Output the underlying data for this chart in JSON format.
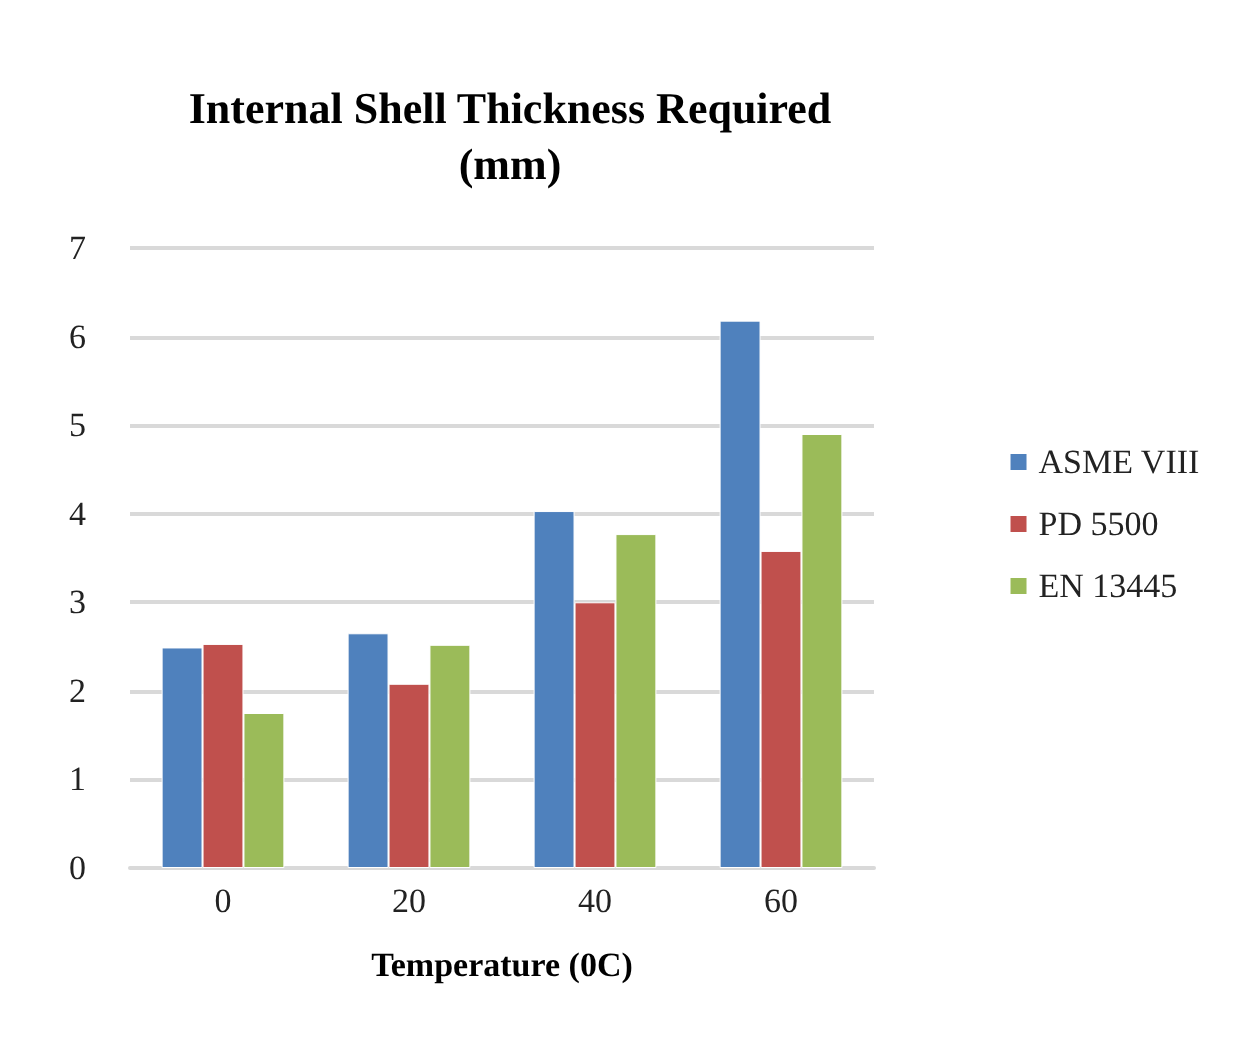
{
  "chart_data": {
    "type": "bar",
    "title": "Internal Shell Thickness Required\n(mm)",
    "xlabel": "Temperature (0C)",
    "categories": [
      "0",
      "20",
      "40",
      "60"
    ],
    "series": [
      {
        "name": "ASME VIII",
        "color": "#4f81bd",
        "values": [
          2.49,
          2.65,
          4.03,
          6.18
        ]
      },
      {
        "name": "PD 5500",
        "color": "#c0504d",
        "values": [
          2.53,
          2.08,
          3.0,
          3.58
        ]
      },
      {
        "name": "EN 13445",
        "color": "#9bbb59",
        "values": [
          1.75,
          2.52,
          3.77,
          4.9
        ]
      }
    ],
    "ylim": [
      0,
      7
    ],
    "yticks": [
      0,
      1,
      2,
      3,
      4,
      5,
      6,
      7
    ],
    "grid": "y",
    "legend": "right"
  }
}
